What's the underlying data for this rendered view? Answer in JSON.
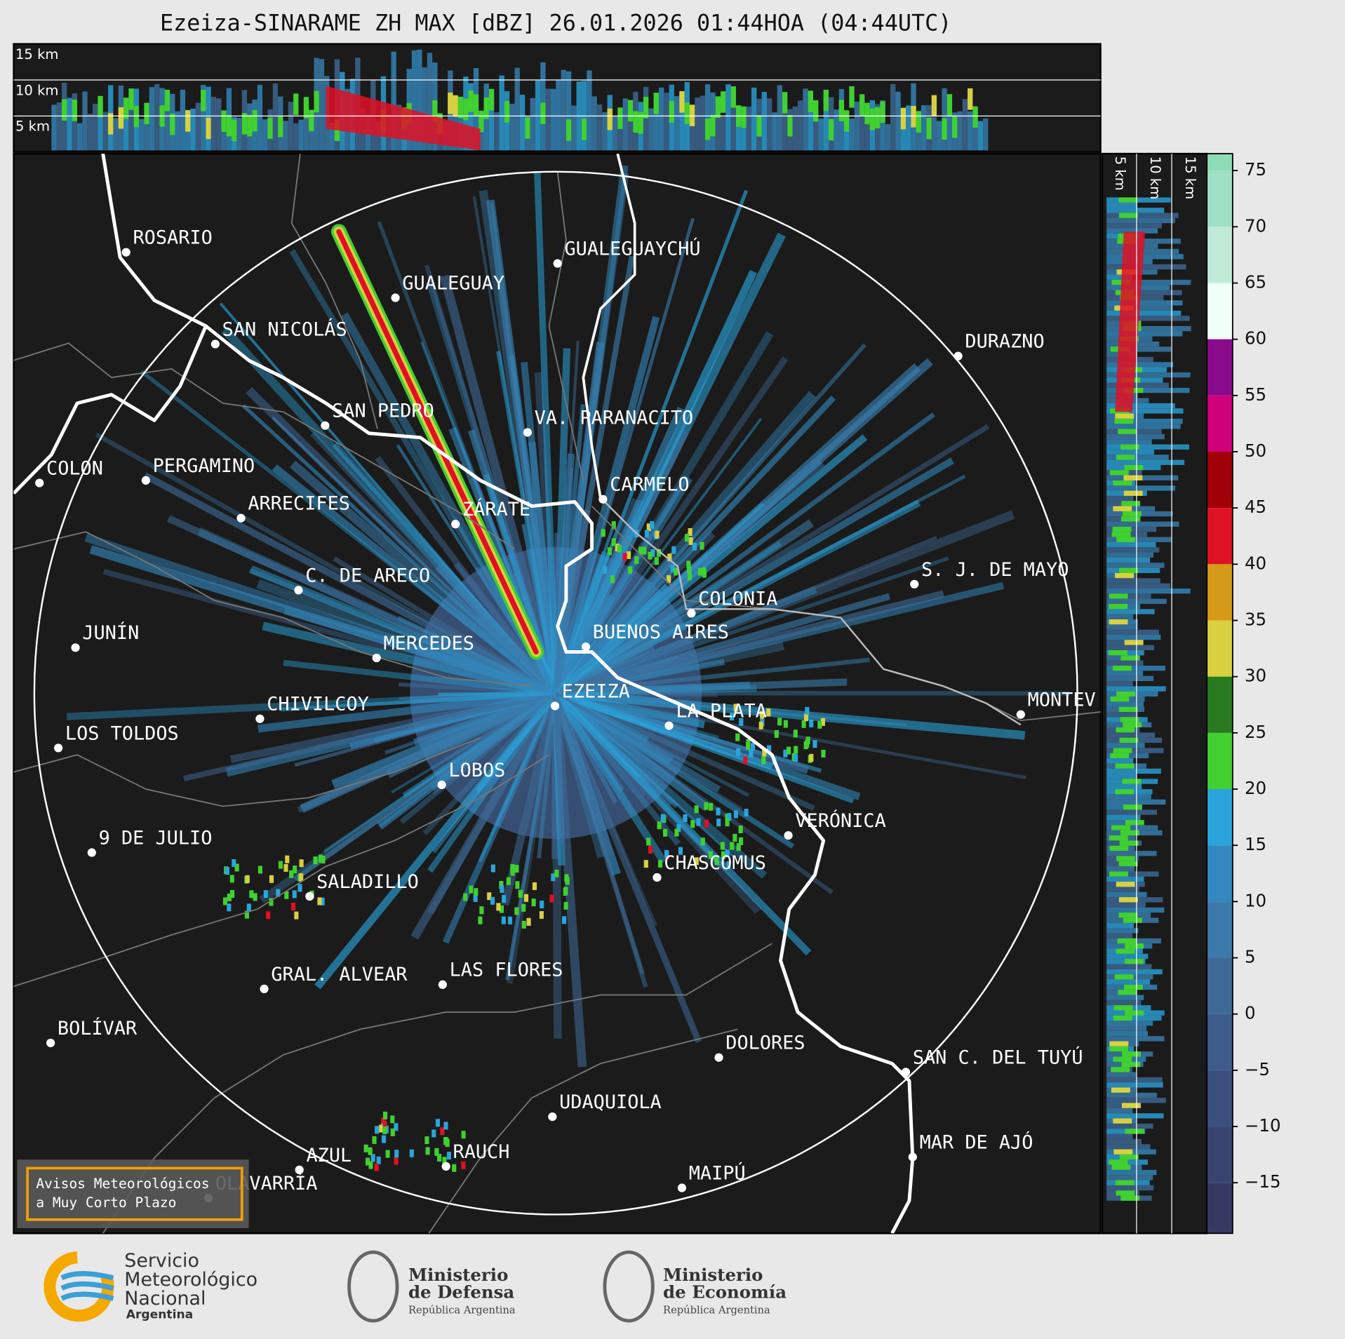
{
  "header": {
    "title": "Ezeiza-SINARAME ZH MAX [dBZ] 26.01.2026 01:44HOA (04:44UTC)"
  },
  "cross_section_top": {
    "height_labels": [
      "15 km",
      "10 km",
      "5 km"
    ]
  },
  "cross_section_right": {
    "height_labels": [
      "5 km",
      "10 km",
      "15 km"
    ]
  },
  "map": {
    "cities": [
      "ROSARIO",
      "GUALEGUAYCHÚ",
      "GUALEGUAY",
      "SAN NICOLÁS",
      "DURAZNO",
      "SAN PEDRO",
      "VA. PARANACITO",
      "COLON",
      "PERGAMINO",
      "CARMELO",
      "ARRECIFES",
      "ZÁRATE",
      "S. J. DE MAYO",
      "C. DE ARECO",
      "COLONIA",
      "BUENOS AIRES",
      "JUNÍN",
      "MERCEDES",
      "EZEIZA",
      "MONTEV",
      "CHIVILCOY",
      "LA PLATA",
      "LOS TOLDOS",
      "LOBOS",
      "VERÓNICA",
      "9 DE JULIO",
      "CHASCOMUS",
      "SALADILLO",
      "GRAL. ALVEAR",
      "LAS FLORES",
      "BOLÍVAR",
      "DOLORES",
      "SAN C. DEL TUYÚ",
      "UDAQUIOLA",
      "MAR DE AJÓ",
      "RAUCH",
      "AZUL",
      "OLAVARRÍA",
      "MAIPÚ"
    ]
  },
  "colorbar": {
    "lim": [
      -19.5,
      76.5
    ],
    "ticks": [
      75,
      70,
      65,
      60,
      55,
      50,
      45,
      40,
      35,
      30,
      25,
      20,
      15,
      10,
      5,
      0,
      {
        "value": -5,
        "label": "−5"
      },
      {
        "value": -10,
        "label": "−10"
      },
      {
        "value": -15,
        "label": "−15"
      }
    ],
    "colors": [
      "#8edbb8",
      "#9ee0c4",
      "#c0ead6",
      "#f0fff8",
      "#8a0a8c",
      "#d0007a",
      "#a00008",
      "#e01025",
      "#d49a18",
      "#d8d040",
      "#2a7a20",
      "#40d030",
      "#2aa4dc",
      "#3389bf",
      "#3b7aaa",
      "#3f6a98",
      "#3e5c8c",
      "#3c5080",
      "#3a4470",
      "#363a62"
    ]
  },
  "warning_box": {
    "lines": [
      "Avisos Meteorológicos",
      "a Muy Corto Plazo"
    ]
  },
  "logos": {
    "smn": [
      "Servicio",
      "Meteorológico",
      "Nacional",
      "Argentina"
    ],
    "defensa": [
      "Ministerio",
      "de Defensa",
      "República Argentina"
    ],
    "economia": [
      "Ministerio",
      "de Economía",
      "República Argentina"
    ]
  }
}
